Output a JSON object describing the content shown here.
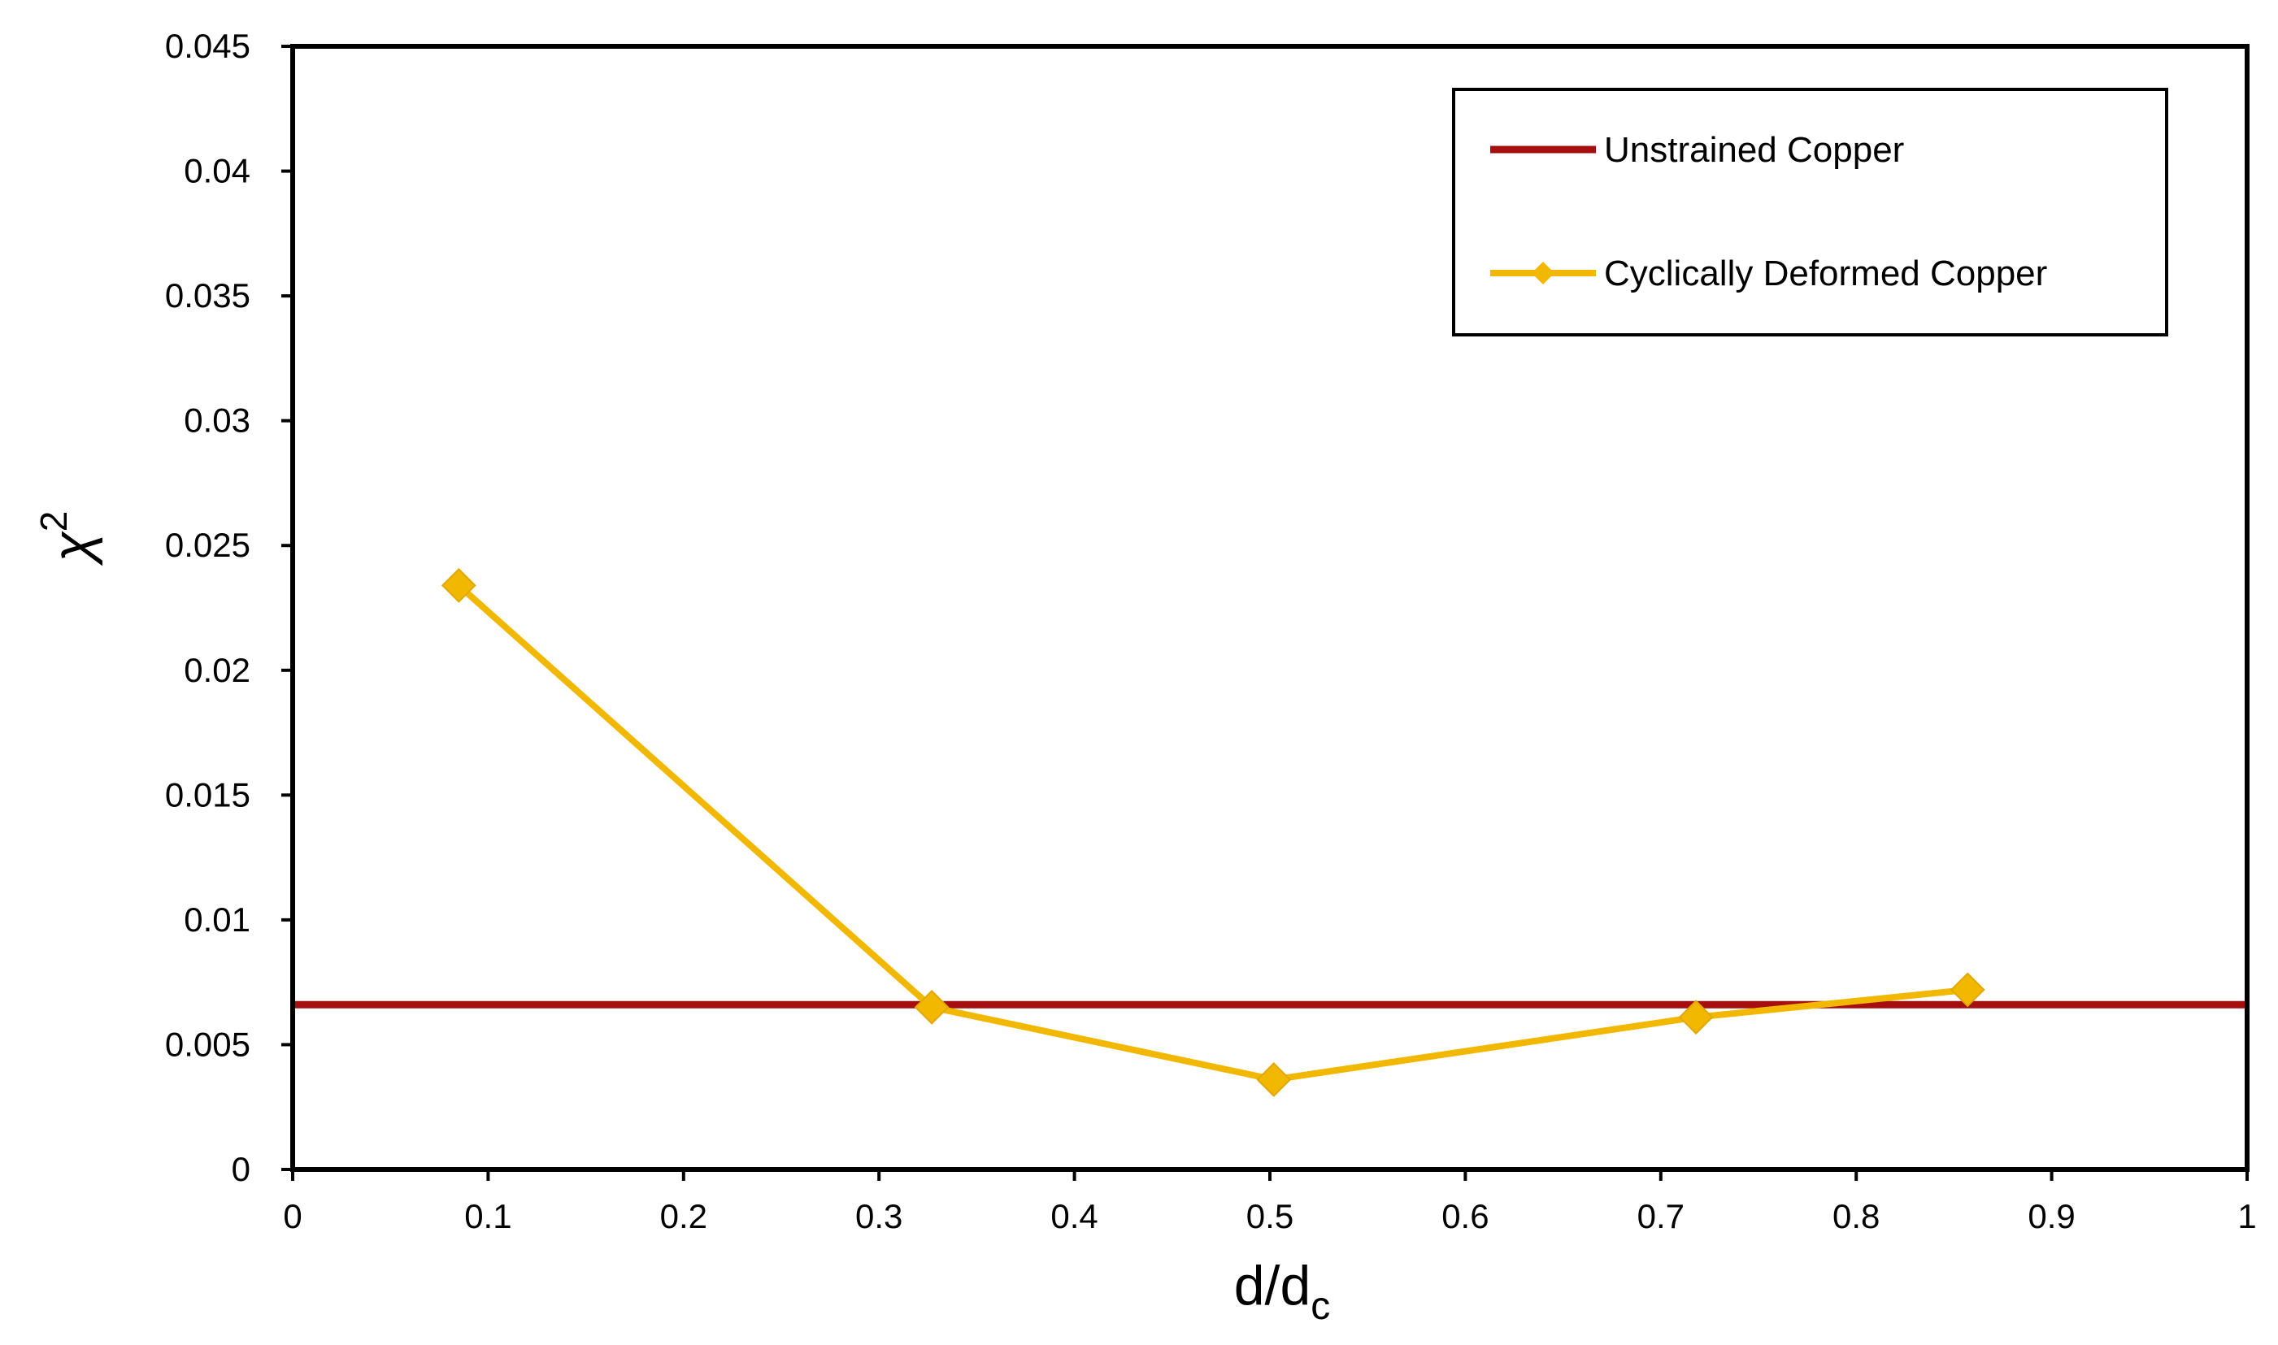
{
  "chart_data": {
    "type": "line",
    "title": "",
    "xlabel": "d/d",
    "xlabel_subscript": "c",
    "ylabel": "χ",
    "ylabel_superscript": "2",
    "xlim": [
      0,
      1
    ],
    "ylim": [
      0,
      0.045
    ],
    "xticks": [
      {
        "value": 0,
        "label": "0"
      },
      {
        "value": 0.1,
        "label": "0.1"
      },
      {
        "value": 0.2,
        "label": "0.2"
      },
      {
        "value": 0.3,
        "label": "0.3"
      },
      {
        "value": 0.4,
        "label": "0.4"
      },
      {
        "value": 0.5,
        "label": "0.5"
      },
      {
        "value": 0.6,
        "label": "0.6"
      },
      {
        "value": 0.7,
        "label": "0.7"
      },
      {
        "value": 0.8,
        "label": "0.8"
      },
      {
        "value": 0.9,
        "label": "0.9"
      },
      {
        "value": 1,
        "label": "1"
      }
    ],
    "yticks": [
      {
        "value": 0,
        "label": "0"
      },
      {
        "value": 0.005,
        "label": "0.005"
      },
      {
        "value": 0.01,
        "label": "0.01"
      },
      {
        "value": 0.015,
        "label": "0.015"
      },
      {
        "value": 0.02,
        "label": "0.02"
      },
      {
        "value": 0.025,
        "label": "0.025"
      },
      {
        "value": 0.03,
        "label": "0.03"
      },
      {
        "value": 0.035,
        "label": "0.035"
      },
      {
        "value": 0.04,
        "label": "0.04"
      },
      {
        "value": 0.045,
        "label": "0.045"
      }
    ],
    "grid": false,
    "legend_position": "top-right",
    "series": [
      {
        "name": "Unstrained Copper",
        "color": "#A50F0F",
        "marker": "none",
        "x": [
          0,
          1
        ],
        "y": [
          0.0066,
          0.0066
        ]
      },
      {
        "name": "Cyclically Deformed Copper",
        "color": "#F2B800",
        "marker": "diamond",
        "x": [
          0.085,
          0.327,
          0.502,
          0.718,
          0.857
        ],
        "y": [
          0.0234,
          0.0065,
          0.0036,
          0.0061,
          0.0072
        ]
      }
    ]
  }
}
